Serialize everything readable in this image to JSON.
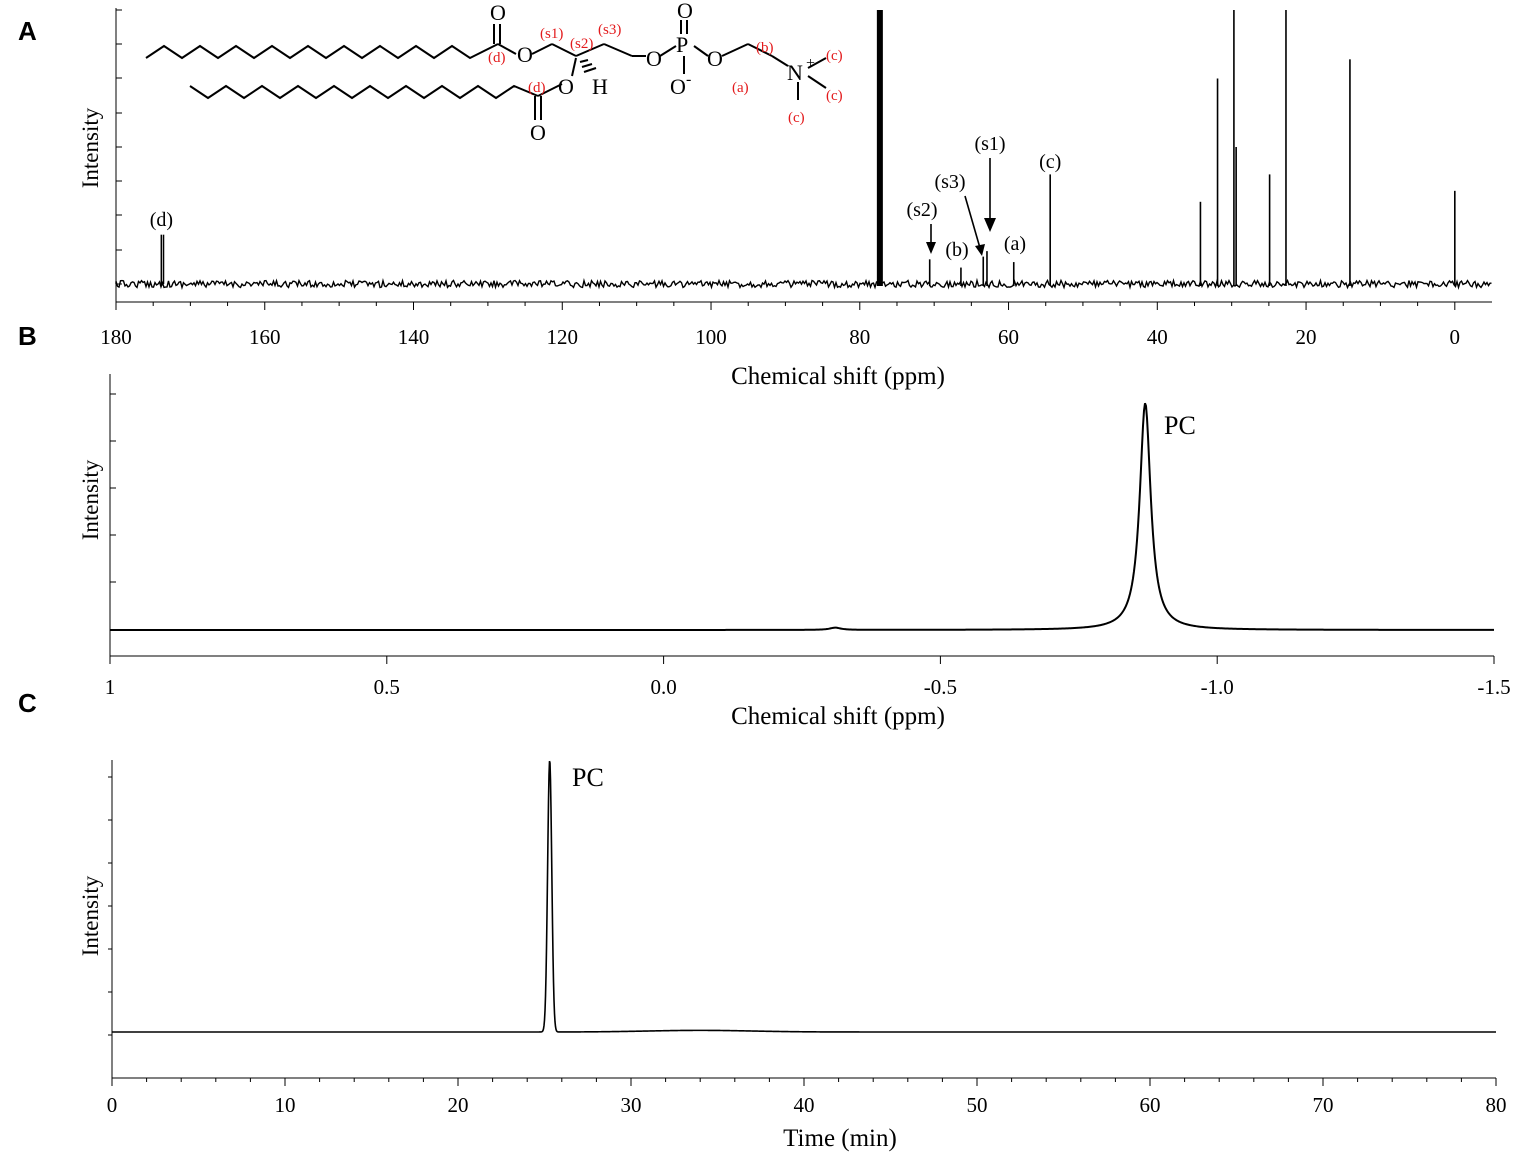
{
  "chart_data": [
    {
      "panel": "A",
      "type": "line",
      "xlabel": "Chemical shift (ppm)",
      "ylabel": "Intensity",
      "xlim": [
        180,
        -5
      ],
      "xticks": [
        180,
        160,
        140,
        120,
        100,
        80,
        60,
        40,
        20,
        0
      ],
      "reversed_x": true,
      "grid": false,
      "peaks": [
        {
          "x": 173.9,
          "h": 0.18,
          "label": "(d)"
        },
        {
          "x": 77.3,
          "h": 1.0,
          "label": ""
        },
        {
          "x": 70.6,
          "h": 0.09,
          "label": "(s2)"
        },
        {
          "x": 66.4,
          "h": 0.06,
          "label": "(b)"
        },
        {
          "x": 63.4,
          "h": 0.1,
          "label": "(s3)"
        },
        {
          "x": 62.9,
          "h": 0.12,
          "label": "(s1)"
        },
        {
          "x": 59.3,
          "h": 0.08,
          "label": "(a)"
        },
        {
          "x": 54.4,
          "h": 0.4,
          "label": "(c)"
        },
        {
          "x": 34.2,
          "h": 0.3,
          "label": ""
        },
        {
          "x": 31.9,
          "h": 0.75,
          "label": ""
        },
        {
          "x": 29.7,
          "h": 1.0,
          "label": ""
        },
        {
          "x": 29.4,
          "h": 0.5,
          "label": ""
        },
        {
          "x": 24.9,
          "h": 0.4,
          "label": ""
        },
        {
          "x": 22.7,
          "h": 1.0,
          "label": ""
        },
        {
          "x": 14.1,
          "h": 0.82,
          "label": ""
        },
        {
          "x": 0.0,
          "h": 0.34,
          "label": ""
        }
      ]
    },
    {
      "panel": "B",
      "type": "line",
      "xlabel": "Chemical shift (ppm)",
      "ylabel": "Intensity",
      "xlim": [
        1,
        -1.5
      ],
      "xticks": [
        1,
        0.5,
        0.0,
        -0.5,
        -1.0,
        -1.5
      ],
      "xtick_labels": [
        "1",
        "0.5",
        "0.0",
        "-0.5",
        "-1.0",
        "-1.5"
      ],
      "reversed_x": true,
      "grid": false,
      "peaks": [
        {
          "x": -0.87,
          "h": 1.0,
          "label": "PC"
        },
        {
          "x": -0.31,
          "h": 0.01,
          "label": ""
        }
      ]
    },
    {
      "panel": "C",
      "type": "line",
      "xlabel": "Time (min)",
      "ylabel": "Intensity",
      "xlim": [
        0,
        80
      ],
      "xticks": [
        0,
        10,
        20,
        30,
        40,
        50,
        60,
        70,
        80
      ],
      "grid": false,
      "peaks": [
        {
          "x": 25.3,
          "h": 1.0,
          "label": "PC"
        }
      ]
    }
  ],
  "panel_letters": [
    "A",
    "B",
    "C"
  ],
  "structure": {
    "carbonyl_O": "O",
    "ester_O": "O",
    "sn2_O": "O",
    "H": "H",
    "P": "P",
    "P_double_O": "O",
    "P_minus_O": "O",
    "minus": "-",
    "bridge_O1": "O",
    "bridge_O2": "O",
    "N": "N",
    "plus": "+",
    "red_labels": {
      "d1": "(d)",
      "d2": "(d)",
      "s1": "(s1)",
      "s2": "(s2)",
      "s3": "(s3)",
      "a": "(a)",
      "b": "(b)",
      "c1": "(c)",
      "c2": "(c)",
      "c3": "(c)"
    }
  }
}
